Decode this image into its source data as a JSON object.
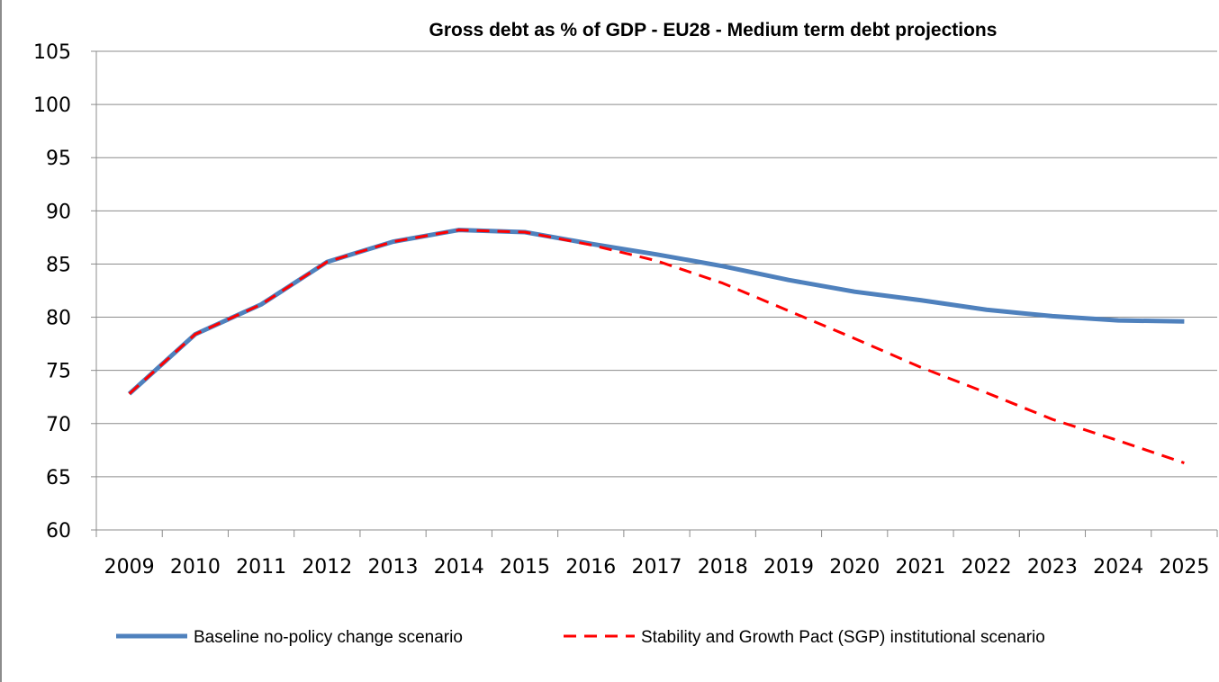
{
  "chart_data": {
    "type": "line",
    "title": "Gross debt as % of GDP - EU28 - Medium term debt projections",
    "xlabel": "",
    "ylabel": "",
    "categories": [
      "2009",
      "2010",
      "2011",
      "2012",
      "2013",
      "2014",
      "2015",
      "2016",
      "2017",
      "2018",
      "2019",
      "2020",
      "2021",
      "2022",
      "2023",
      "2024",
      "2025"
    ],
    "y_ticks": [
      "60",
      "65",
      "70",
      "75",
      "80",
      "85",
      "90",
      "95",
      "100",
      "105"
    ],
    "ylim": [
      60,
      105
    ],
    "grid": "horizontal",
    "legend_position": "bottom",
    "series": [
      {
        "name": "Baseline no-policy change scenario",
        "color": "#4f81bd",
        "style": "solid",
        "values": [
          72.8,
          78.4,
          81.2,
          85.2,
          87.1,
          88.2,
          88.0,
          86.9,
          85.9,
          84.8,
          83.5,
          82.4,
          81.6,
          80.7,
          80.1,
          79.7,
          79.6
        ]
      },
      {
        "name": "Stability and Growth Pact (SGP) institutional scenario",
        "color": "#ff0000",
        "style": "dashed",
        "values": [
          72.8,
          78.4,
          81.2,
          85.2,
          87.1,
          88.2,
          88.0,
          86.8,
          85.3,
          83.2,
          80.6,
          78.0,
          75.3,
          72.9,
          70.4,
          68.4,
          66.3
        ]
      }
    ]
  }
}
